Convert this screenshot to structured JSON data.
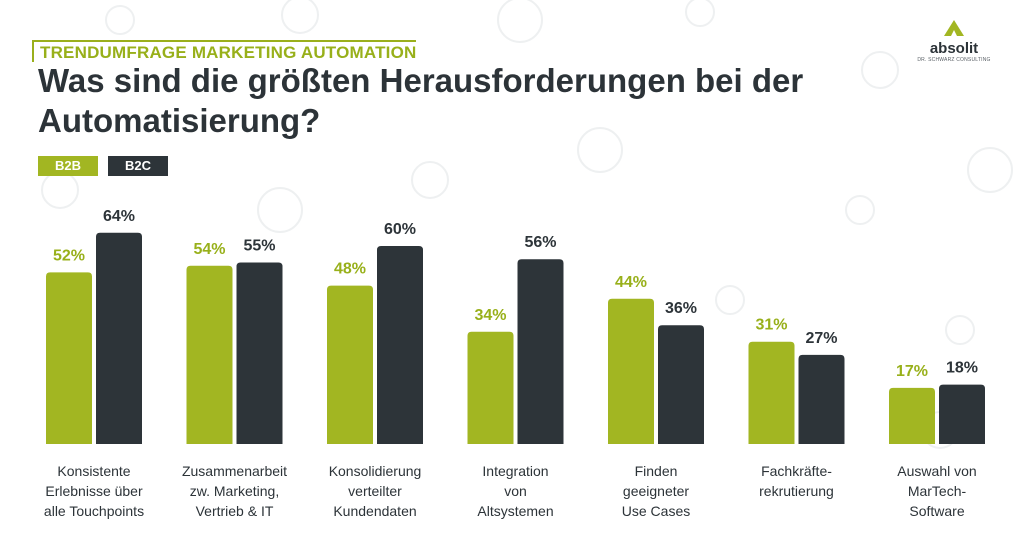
{
  "header": {
    "eyebrow": "TRENDUMFRAGE MARKETING AUTOMATION",
    "title": "Was sind die größten Herausforderungen bei der Automatisierung?"
  },
  "logo": {
    "name": "absolit",
    "tagline": "DR. SCHWARZ CONSULTING"
  },
  "colors": {
    "b2b": "#a2b622",
    "b2c": "#2d3439",
    "b2b_label": "#98b01a",
    "b2c_label": "#2d3439"
  },
  "chart_data": {
    "type": "bar",
    "categories": [
      [
        "Konsistente",
        "Erlebnisse über",
        "alle Touchpoints"
      ],
      [
        "Zusammenarbeit",
        "zw. Marketing,",
        "Vertrieb & IT"
      ],
      [
        "Konsolidierung",
        "verteilter",
        "Kundendaten"
      ],
      [
        "Integration",
        "von",
        "Altsystemen"
      ],
      [
        "Finden",
        "geeigneter",
        "Use Cases"
      ],
      [
        "Fachkräfte-",
        "rekrutierung"
      ],
      [
        "Auswahl von",
        "MarTech-",
        "Software"
      ]
    ],
    "series": [
      {
        "name": "B2B",
        "values": [
          52,
          54,
          48,
          34,
          44,
          31,
          17
        ],
        "labels": [
          "52%",
          "54%",
          "48%",
          "34%",
          "44%",
          "31%",
          "17%"
        ]
      },
      {
        "name": "B2C",
        "values": [
          64,
          55,
          60,
          56,
          36,
          27,
          18
        ],
        "labels": [
          "64%",
          "55%",
          "60%",
          "56%",
          "36%",
          "27%",
          "18%"
        ]
      }
    ],
    "ylim": [
      0,
      100
    ],
    "legend": "top-left",
    "grid": false
  }
}
